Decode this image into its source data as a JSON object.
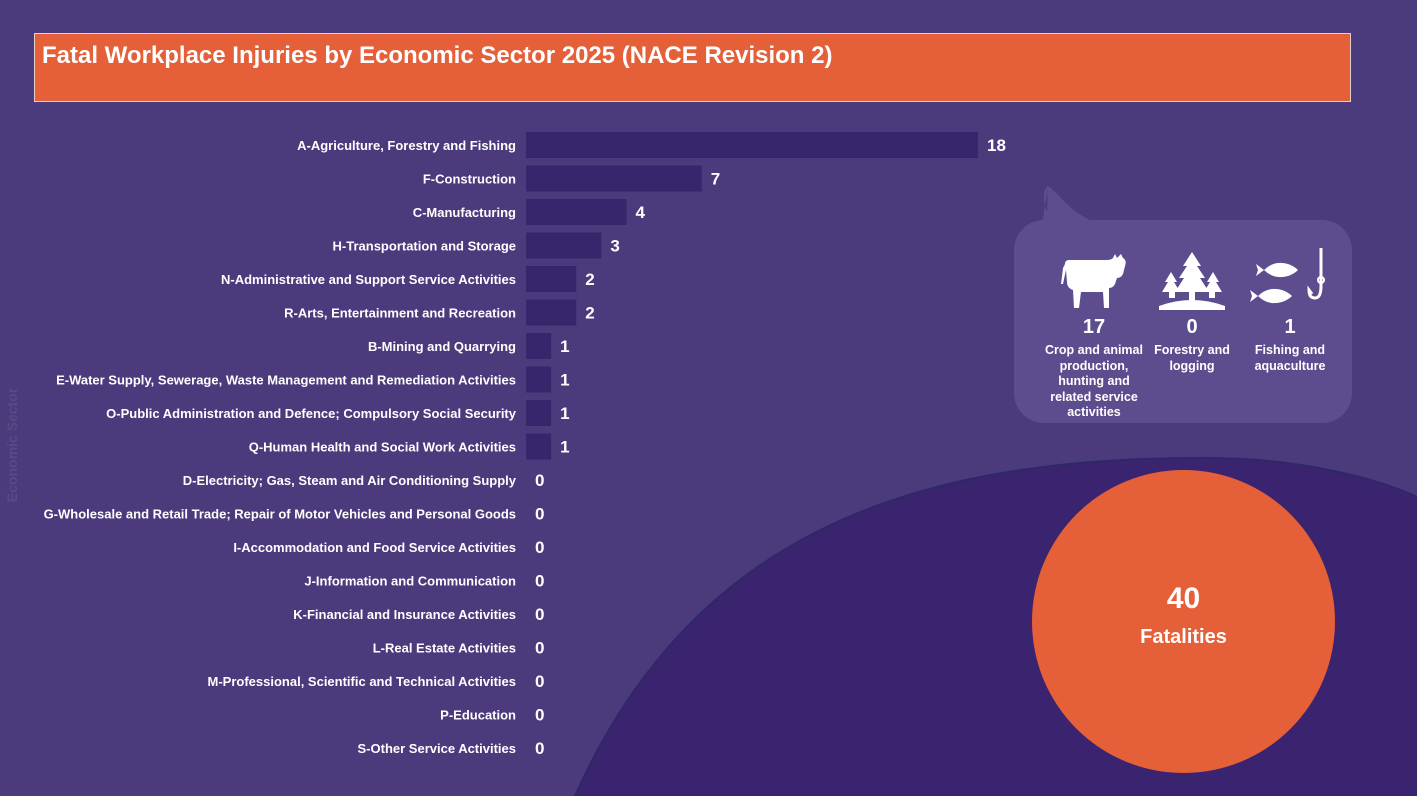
{
  "chart_data": {
    "type": "bar",
    "orientation": "horizontal",
    "title": "Fatal Workplace Injuries by Economic Sector 2025 (NACE Revision 2)",
    "ylabel": "Economic Sector",
    "xlabel": "",
    "categories": [
      "A-Agriculture, Forestry and Fishing",
      "F-Construction",
      "C-Manufacturing",
      "H-Transportation and Storage",
      "N-Administrative and Support Service Activities",
      "R-Arts, Entertainment and Recreation",
      "B-Mining and Quarrying",
      "E-Water Supply, Sewerage, Waste Management and Remediation Activities",
      "O-Public Administration and Defence; Compulsory Social Security",
      "Q-Human Health and Social Work Activities",
      "D-Electricity; Gas, Steam and Air Conditioning Supply",
      "G-Wholesale and Retail Trade; Repair of Motor Vehicles and Personal Goods",
      "I-Accommodation and Food Service Activities",
      "J-Information and Communication",
      "K-Financial and Insurance Activities",
      "L-Real Estate Activities",
      "M-Professional, Scientific and Technical Activities",
      "P-Education",
      "S-Other Service Activities"
    ],
    "values": [
      18,
      7,
      4,
      3,
      2,
      2,
      1,
      1,
      1,
      1,
      0,
      0,
      0,
      0,
      0,
      0,
      0,
      0,
      0
    ],
    "xlim": [
      0,
      18
    ],
    "grid": false,
    "bar_color": "#38266c"
  },
  "breakdown": {
    "items": [
      {
        "icon": "cow-icon",
        "value": "17",
        "label": "Crop and animal production, hunting and related service activities"
      },
      {
        "icon": "trees-icon",
        "value": "0",
        "label": "Forestry and logging"
      },
      {
        "icon": "fish-hook-icon",
        "value": "1",
        "label": "Fishing and aquaculture"
      }
    ]
  },
  "total": {
    "value": "40",
    "label": "Fatalities"
  },
  "colors": {
    "background": "#4b3a7c",
    "accent": "#e55f38",
    "bar": "#38266c",
    "dark_region": "#3a2470",
    "callout": "#5d4d8e"
  }
}
